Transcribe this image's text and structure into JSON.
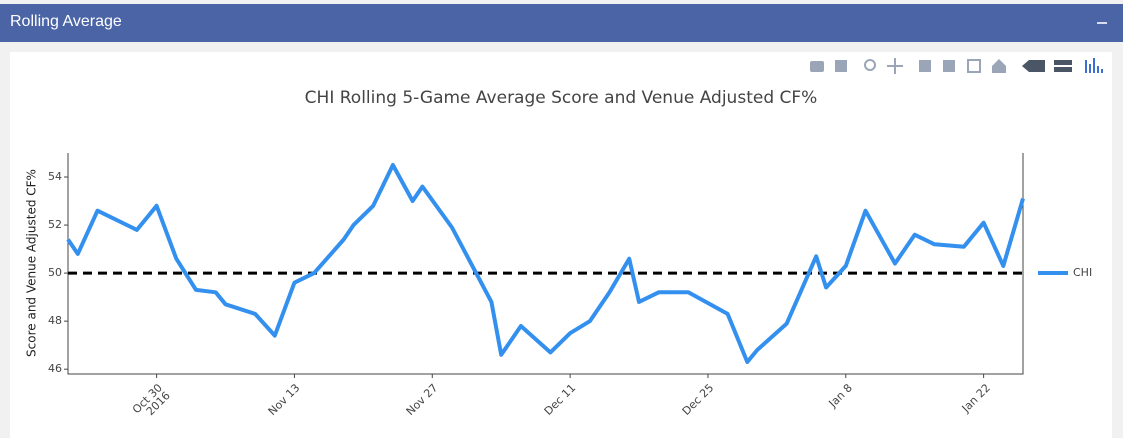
{
  "header": {
    "title": "Rolling Average"
  },
  "chart_data": {
    "type": "line",
    "title": "CHI Rolling 5-Game Average Score and Venue Adjusted CF%",
    "y_label": "Score and Venue Adjusted CF%",
    "x": [
      "2016-10-21",
      "2016-10-22",
      "2016-10-24",
      "2016-10-28",
      "2016-10-30",
      "2016-11-01",
      "2016-11-03",
      "2016-11-05",
      "2016-11-06",
      "2016-11-09",
      "2016-11-11",
      "2016-11-13",
      "2016-11-15",
      "2016-11-18",
      "2016-11-19",
      "2016-11-21",
      "2016-11-23",
      "2016-11-25",
      "2016-11-26",
      "2016-11-29",
      "2016-12-03",
      "2016-12-04",
      "2016-12-06",
      "2016-12-09",
      "2016-12-11",
      "2016-12-13",
      "2016-12-15",
      "2016-12-17",
      "2016-12-18",
      "2016-12-20",
      "2016-12-23",
      "2016-12-27",
      "2016-12-29",
      "2016-12-30",
      "2017-01-02",
      "2017-01-05",
      "2017-01-06",
      "2017-01-08",
      "2017-01-10",
      "2017-01-13",
      "2017-01-15",
      "2017-01-17",
      "2017-01-20",
      "2017-01-22",
      "2017-01-24",
      "2017-01-26"
    ],
    "series": [
      {
        "name": "CHI",
        "color": "#3390ee",
        "values": [
          51.4,
          50.8,
          52.6,
          51.8,
          52.8,
          50.6,
          49.3,
          49.2,
          48.7,
          48.3,
          47.4,
          49.6,
          50.0,
          51.4,
          52.0,
          52.8,
          54.5,
          53.0,
          53.6,
          51.9,
          48.8,
          46.6,
          47.8,
          46.7,
          47.5,
          48.0,
          49.2,
          50.6,
          48.8,
          49.2,
          49.2,
          48.3,
          46.3,
          46.8,
          47.9,
          50.7,
          49.4,
          50.3,
          52.6,
          50.4,
          51.6,
          51.2,
          51.1,
          52.1,
          50.3,
          53.1
        ]
      }
    ],
    "reference_line": 50,
    "xlim": [
      "2016-10-21",
      "2017-01-26"
    ],
    "xticks": [
      {
        "value": "2016-10-30",
        "label": "Oct 30\n2016"
      },
      {
        "value": "2016-11-13",
        "label": "Nov 13"
      },
      {
        "value": "2016-11-27",
        "label": "Nov 27"
      },
      {
        "value": "2016-12-11",
        "label": "Dec 11"
      },
      {
        "value": "2016-12-25",
        "label": "Dec 25"
      },
      {
        "value": "2017-01-08",
        "label": "Jan 8"
      },
      {
        "value": "2017-01-22",
        "label": "Jan 22"
      }
    ],
    "ylim": [
      45.8,
      55
    ],
    "yticks": [
      46,
      48,
      50,
      52,
      54
    ],
    "grid": false,
    "legend": "right"
  }
}
